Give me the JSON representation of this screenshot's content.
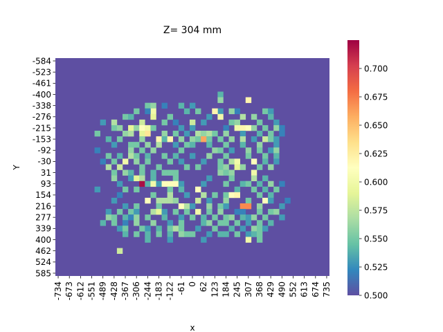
{
  "chart_data": {
    "type": "heatmap",
    "title": "Z= 304 mm",
    "xlabel": "x",
    "ylabel": "Y",
    "x_tick_labels": [
      "-734",
      "-673",
      "-612",
      "-551",
      "-489",
      "-428",
      "-367",
      "-306",
      "-244",
      "-183",
      "-122",
      "-61",
      "0",
      "62",
      "123",
      "184",
      "245",
      "307",
      "368",
      "429",
      "490",
      "552",
      "613",
      "674",
      "735"
    ],
    "y_tick_labels": [
      "-584",
      "-523",
      "-461",
      "-400",
      "-338",
      "-276",
      "-215",
      "-153",
      "-92",
      "-30",
      "31",
      "93",
      "154",
      "216",
      "277",
      "339",
      "400",
      "462",
      "524",
      "585"
    ],
    "colorbar": {
      "min": 0.5,
      "max": 0.725,
      "ticks": [
        "0.500",
        "0.525",
        "0.550",
        "0.575",
        "0.600",
        "0.625",
        "0.650",
        "0.675",
        "0.700"
      ],
      "colormap": "Spectral_r"
    },
    "grid_cols": 49,
    "grid_rows": 39,
    "background_value": 0.5,
    "cells": [
      [
        29,
        6,
        0.54
      ],
      [
        29,
        7,
        0.56
      ],
      [
        34,
        7,
        0.62
      ],
      [
        19,
        8,
        0.52
      ],
      [
        22,
        8,
        0.54
      ],
      [
        24,
        8,
        0.53
      ],
      [
        16,
        8,
        0.55
      ],
      [
        17,
        8,
        0.56
      ],
      [
        25,
        9,
        0.55
      ],
      [
        29,
        9,
        0.53
      ],
      [
        32,
        9,
        0.52
      ],
      [
        17,
        9,
        0.6
      ],
      [
        14,
        9,
        0.55
      ],
      [
        16,
        9,
        0.52
      ],
      [
        23,
        9,
        0.54
      ],
      [
        28,
        9,
        0.62
      ],
      [
        31,
        9,
        0.56
      ],
      [
        37,
        9,
        0.55
      ],
      [
        38,
        9,
        0.53
      ],
      [
        17,
        10,
        0.59
      ],
      [
        12,
        10,
        0.55
      ],
      [
        13,
        10,
        0.54
      ],
      [
        27,
        10,
        0.53
      ],
      [
        29,
        10,
        0.6
      ],
      [
        33,
        10,
        0.57
      ],
      [
        35,
        10,
        0.56
      ],
      [
        38,
        10,
        0.54
      ],
      [
        20,
        10,
        0.55
      ],
      [
        8,
        11,
        0.53
      ],
      [
        10,
        11,
        0.57
      ],
      [
        15,
        11,
        0.58
      ],
      [
        19,
        11,
        0.55
      ],
      [
        21,
        11,
        0.52
      ],
      [
        24,
        11,
        0.58
      ],
      [
        26,
        11,
        0.53
      ],
      [
        31,
        11,
        0.55
      ],
      [
        32,
        11,
        0.56
      ],
      [
        36,
        11,
        0.55
      ],
      [
        39,
        11,
        0.53
      ],
      [
        10,
        12,
        0.55
      ],
      [
        11,
        12,
        0.56
      ],
      [
        13,
        12,
        0.59
      ],
      [
        14,
        12,
        0.56
      ],
      [
        15,
        12,
        0.61
      ],
      [
        16,
        12,
        0.6
      ],
      [
        17,
        12,
        0.55
      ],
      [
        22,
        12,
        0.53
      ],
      [
        24,
        12,
        0.53
      ],
      [
        30,
        12,
        0.52
      ],
      [
        32,
        12,
        0.6
      ],
      [
        33,
        12,
        0.62
      ],
      [
        34,
        12,
        0.61
      ],
      [
        35,
        12,
        0.56
      ],
      [
        37,
        12,
        0.55
      ],
      [
        39,
        12,
        0.56
      ],
      [
        40,
        12,
        0.52
      ],
      [
        7,
        13,
        0.55
      ],
      [
        12,
        13,
        0.56
      ],
      [
        13,
        13,
        0.57
      ],
      [
        15,
        13,
        0.59
      ],
      [
        16,
        13,
        0.63
      ],
      [
        19,
        13,
        0.56
      ],
      [
        21,
        13,
        0.55
      ],
      [
        23,
        13,
        0.53
      ],
      [
        25,
        13,
        0.57
      ],
      [
        26,
        13,
        0.56
      ],
      [
        27,
        13,
        0.57
      ],
      [
        28,
        13,
        0.55
      ],
      [
        30,
        13,
        0.56
      ],
      [
        33,
        13,
        0.53
      ],
      [
        36,
        13,
        0.54
      ],
      [
        38,
        13,
        0.55
      ],
      [
        40,
        13,
        0.52
      ],
      [
        9,
        14,
        0.54
      ],
      [
        11,
        14,
        0.55
      ],
      [
        15,
        14,
        0.56
      ],
      [
        18,
        14,
        0.62
      ],
      [
        19,
        14,
        0.54
      ],
      [
        20,
        14,
        0.62
      ],
      [
        22,
        14,
        0.56
      ],
      [
        24,
        14,
        0.56
      ],
      [
        25,
        14,
        0.55
      ],
      [
        26,
        14,
        0.66
      ],
      [
        27,
        14,
        0.55
      ],
      [
        29,
        14,
        0.55
      ],
      [
        31,
        14,
        0.56
      ],
      [
        33,
        14,
        0.57
      ],
      [
        35,
        14,
        0.53
      ],
      [
        37,
        14,
        0.58
      ],
      [
        38,
        14,
        0.55
      ],
      [
        39,
        14,
        0.53
      ],
      [
        10,
        15,
        0.53
      ],
      [
        13,
        15,
        0.55
      ],
      [
        14,
        15,
        0.55
      ],
      [
        16,
        15,
        0.56
      ],
      [
        18,
        15,
        0.57
      ],
      [
        21,
        15,
        0.53
      ],
      [
        23,
        15,
        0.55
      ],
      [
        24,
        15,
        0.54
      ],
      [
        27,
        15,
        0.54
      ],
      [
        30,
        15,
        0.55
      ],
      [
        33,
        15,
        0.54
      ],
      [
        36,
        15,
        0.56
      ],
      [
        39,
        15,
        0.53
      ],
      [
        7,
        16,
        0.52
      ],
      [
        13,
        16,
        0.56
      ],
      [
        15,
        16,
        0.55
      ],
      [
        17,
        16,
        0.56
      ],
      [
        22,
        16,
        0.55
      ],
      [
        28,
        16,
        0.56
      ],
      [
        29,
        16,
        0.55
      ],
      [
        31,
        16,
        0.53
      ],
      [
        34,
        16,
        0.56
      ],
      [
        36,
        16,
        0.55
      ],
      [
        38,
        16,
        0.53
      ],
      [
        39,
        16,
        0.56
      ],
      [
        9,
        17,
        0.55
      ],
      [
        11,
        17,
        0.54
      ],
      [
        13,
        17,
        0.57
      ],
      [
        14,
        17,
        0.55
      ],
      [
        16,
        17,
        0.54
      ],
      [
        19,
        17,
        0.55
      ],
      [
        21,
        17,
        0.54
      ],
      [
        24,
        17,
        0.53
      ],
      [
        27,
        17,
        0.56
      ],
      [
        30,
        17,
        0.55
      ],
      [
        34,
        17,
        0.55
      ],
      [
        37,
        17,
        0.55
      ],
      [
        39,
        17,
        0.54
      ],
      [
        8,
        18,
        0.52
      ],
      [
        10,
        18,
        0.55
      ],
      [
        12,
        18,
        0.6
      ],
      [
        14,
        18,
        0.56
      ],
      [
        16,
        18,
        0.55
      ],
      [
        20,
        18,
        0.55
      ],
      [
        22,
        18,
        0.53
      ],
      [
        26,
        18,
        0.53
      ],
      [
        29,
        18,
        0.55
      ],
      [
        31,
        18,
        0.57
      ],
      [
        32,
        18,
        0.6
      ],
      [
        35,
        18,
        0.61
      ],
      [
        37,
        18,
        0.54
      ],
      [
        39,
        18,
        0.53
      ],
      [
        9,
        19,
        0.57
      ],
      [
        11,
        19,
        0.58
      ],
      [
        15,
        19,
        0.55
      ],
      [
        18,
        19,
        0.55
      ],
      [
        23,
        19,
        0.55
      ],
      [
        25,
        19,
        0.55
      ],
      [
        29,
        19,
        0.55
      ],
      [
        30,
        19,
        0.56
      ],
      [
        32,
        19,
        0.59
      ],
      [
        33,
        19,
        0.56
      ],
      [
        36,
        19,
        0.55
      ],
      [
        38,
        19,
        0.56
      ],
      [
        10,
        20,
        0.55
      ],
      [
        12,
        20,
        0.56
      ],
      [
        13,
        20,
        0.54
      ],
      [
        15,
        20,
        0.55
      ],
      [
        17,
        20,
        0.54
      ],
      [
        19,
        20,
        0.55
      ],
      [
        20,
        20,
        0.55
      ],
      [
        21,
        20,
        0.55
      ],
      [
        29,
        20,
        0.56
      ],
      [
        30,
        20,
        0.55
      ],
      [
        31,
        20,
        0.56
      ],
      [
        35,
        20,
        0.6
      ],
      [
        10,
        21,
        0.56
      ],
      [
        13,
        21,
        0.53
      ],
      [
        14,
        21,
        0.59
      ],
      [
        15,
        21,
        0.57
      ],
      [
        17,
        21,
        0.54
      ],
      [
        21,
        21,
        0.55
      ],
      [
        27,
        21,
        0.53
      ],
      [
        31,
        21,
        0.55
      ],
      [
        35,
        21,
        0.57
      ],
      [
        37,
        21,
        0.54
      ],
      [
        11,
        22,
        0.53
      ],
      [
        15,
        22,
        0.72
      ],
      [
        16,
        22,
        0.54
      ],
      [
        17,
        22,
        0.6
      ],
      [
        18,
        22,
        0.53
      ],
      [
        19,
        22,
        0.61
      ],
      [
        20,
        22,
        0.61
      ],
      [
        21,
        22,
        0.61
      ],
      [
        22,
        22,
        0.53
      ],
      [
        26,
        22,
        0.53
      ],
      [
        30,
        22,
        0.55
      ],
      [
        33,
        22,
        0.54
      ],
      [
        34,
        22,
        0.55
      ],
      [
        36,
        22,
        0.54
      ],
      [
        38,
        22,
        0.56
      ],
      [
        40,
        22,
        0.52
      ],
      [
        7,
        23,
        0.53
      ],
      [
        12,
        23,
        0.55
      ],
      [
        14,
        23,
        0.55
      ],
      [
        20,
        23,
        0.55
      ],
      [
        22,
        23,
        0.54
      ],
      [
        25,
        23,
        0.61
      ],
      [
        32,
        23,
        0.54
      ],
      [
        35,
        23,
        0.55
      ],
      [
        37,
        23,
        0.54
      ],
      [
        39,
        23,
        0.55
      ],
      [
        11,
        24,
        0.52
      ],
      [
        17,
        24,
        0.55
      ],
      [
        20,
        24,
        0.57
      ],
      [
        23,
        24,
        0.53
      ],
      [
        26,
        24,
        0.57
      ],
      [
        28,
        24,
        0.55
      ],
      [
        30,
        24,
        0.55
      ],
      [
        31,
        24,
        0.61
      ],
      [
        32,
        24,
        0.62
      ],
      [
        36,
        24,
        0.55
      ],
      [
        38,
        24,
        0.54
      ],
      [
        10,
        25,
        0.53
      ],
      [
        16,
        25,
        0.61
      ],
      [
        18,
        25,
        0.57
      ],
      [
        19,
        25,
        0.57
      ],
      [
        20,
        25,
        0.57
      ],
      [
        21,
        25,
        0.56
      ],
      [
        25,
        25,
        0.58
      ],
      [
        27,
        25,
        0.53
      ],
      [
        30,
        25,
        0.56
      ],
      [
        34,
        25,
        0.55
      ],
      [
        37,
        25,
        0.61
      ],
      [
        38,
        25,
        0.53
      ],
      [
        41,
        25,
        0.52
      ],
      [
        12,
        26,
        0.53
      ],
      [
        14,
        26,
        0.55
      ],
      [
        18,
        26,
        0.55
      ],
      [
        22,
        26,
        0.61
      ],
      [
        23,
        26,
        0.57
      ],
      [
        24,
        26,
        0.53
      ],
      [
        27,
        26,
        0.56
      ],
      [
        29,
        26,
        0.55
      ],
      [
        30,
        26,
        0.53
      ],
      [
        33,
        26,
        0.67
      ],
      [
        34,
        26,
        0.67
      ],
      [
        36,
        26,
        0.56
      ],
      [
        40,
        26,
        0.53
      ],
      [
        9,
        27,
        0.53
      ],
      [
        11,
        27,
        0.55
      ],
      [
        13,
        27,
        0.55
      ],
      [
        14,
        27,
        0.53
      ],
      [
        17,
        27,
        0.57
      ],
      [
        18,
        27,
        0.59
      ],
      [
        19,
        27,
        0.53
      ],
      [
        21,
        27,
        0.55
      ],
      [
        23,
        27,
        0.55
      ],
      [
        25,
        27,
        0.6
      ],
      [
        27,
        27,
        0.55
      ],
      [
        29,
        27,
        0.56
      ],
      [
        32,
        27,
        0.52
      ],
      [
        33,
        27,
        0.52
      ],
      [
        36,
        27,
        0.55
      ],
      [
        38,
        27,
        0.55
      ],
      [
        39,
        27,
        0.56
      ],
      [
        9,
        28,
        0.56
      ],
      [
        10,
        28,
        0.55
      ],
      [
        12,
        28,
        0.54
      ],
      [
        13,
        28,
        0.52
      ],
      [
        14,
        28,
        0.56
      ],
      [
        16,
        28,
        0.55
      ],
      [
        19,
        28,
        0.54
      ],
      [
        22,
        28,
        0.53
      ],
      [
        24,
        28,
        0.55
      ],
      [
        26,
        28,
        0.54
      ],
      [
        28,
        28,
        0.55
      ],
      [
        30,
        28,
        0.55
      ],
      [
        31,
        28,
        0.56
      ],
      [
        33,
        28,
        0.54
      ],
      [
        34,
        28,
        0.53
      ],
      [
        35,
        28,
        0.56
      ],
      [
        37,
        28,
        0.55
      ],
      [
        40,
        28,
        0.53
      ],
      [
        8,
        29,
        0.54
      ],
      [
        10,
        29,
        0.55
      ],
      [
        12,
        29,
        0.52
      ],
      [
        14,
        29,
        0.56
      ],
      [
        17,
        29,
        0.56
      ],
      [
        20,
        29,
        0.53
      ],
      [
        22,
        29,
        0.55
      ],
      [
        26,
        29,
        0.54
      ],
      [
        27,
        29,
        0.56
      ],
      [
        29,
        29,
        0.55
      ],
      [
        30,
        29,
        0.55
      ],
      [
        32,
        29,
        0.55
      ],
      [
        34,
        29,
        0.53
      ],
      [
        36,
        29,
        0.55
      ],
      [
        38,
        29,
        0.54
      ],
      [
        11,
        30,
        0.53
      ],
      [
        12,
        30,
        0.55
      ],
      [
        15,
        30,
        0.55
      ],
      [
        16,
        30,
        0.53
      ],
      [
        18,
        30,
        0.54
      ],
      [
        20,
        30,
        0.55
      ],
      [
        21,
        30,
        0.57
      ],
      [
        22,
        30,
        0.55
      ],
      [
        25,
        30,
        0.53
      ],
      [
        28,
        30,
        0.55
      ],
      [
        31,
        30,
        0.54
      ],
      [
        33,
        30,
        0.53
      ],
      [
        35,
        30,
        0.56
      ],
      [
        36,
        30,
        0.55
      ],
      [
        37,
        30,
        0.53
      ],
      [
        12,
        31,
        0.54
      ],
      [
        14,
        31,
        0.55
      ],
      [
        16,
        31,
        0.54
      ],
      [
        18,
        31,
        0.55
      ],
      [
        20,
        31,
        0.54
      ],
      [
        22,
        31,
        0.56
      ],
      [
        23,
        31,
        0.55
      ],
      [
        24,
        31,
        0.55
      ],
      [
        27,
        31,
        0.53
      ],
      [
        29,
        31,
        0.54
      ],
      [
        30,
        31,
        0.54
      ],
      [
        32,
        31,
        0.55
      ],
      [
        34,
        31,
        0.53
      ],
      [
        35,
        31,
        0.54
      ],
      [
        36,
        31,
        0.55
      ],
      [
        16,
        32,
        0.54
      ],
      [
        20,
        32,
        0.53
      ],
      [
        26,
        32,
        0.53
      ],
      [
        34,
        32,
        0.6
      ],
      [
        36,
        32,
        0.55
      ],
      [
        11,
        34,
        0.58
      ]
    ]
  }
}
